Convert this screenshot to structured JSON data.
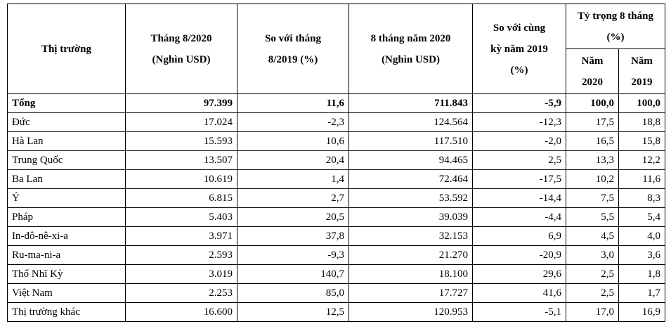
{
  "header": {
    "market": "Thị trường",
    "aug2020": [
      "Tháng 8/2020",
      "(Nghìn USD)"
    ],
    "vs_aug2019": [
      "So với tháng",
      "8/2019  (%)"
    ],
    "m8_2020": [
      "8 tháng năm 2020",
      "(Nghìn USD)"
    ],
    "vs_same_period": [
      "So với cùng",
      "kỳ năm 2019",
      "(%)"
    ],
    "share": [
      "Tỷ trọng 8 tháng",
      "(%)"
    ],
    "y2020": [
      "Năm",
      "2020"
    ],
    "y2019": [
      "Năm",
      "2019"
    ]
  },
  "rows": [
    {
      "market": "Tổng",
      "aug2020": "97.399",
      "vs_aug2019": "11,6",
      "m8_2020": "711.843",
      "vs_same_period": "-5,9",
      "share2020": "100,0",
      "share2019": "100,0"
    },
    {
      "market": "Đức",
      "aug2020": "17.024",
      "vs_aug2019": "-2,3",
      "m8_2020": "124.564",
      "vs_same_period": "-12,3",
      "share2020": "17,5",
      "share2019": "18,8"
    },
    {
      "market": "Hà Lan",
      "aug2020": "15.593",
      "vs_aug2019": "10,6",
      "m8_2020": "117.510",
      "vs_same_period": "-2,0",
      "share2020": "16,5",
      "share2019": "15,8"
    },
    {
      "market": "Trung Quốc",
      "aug2020": "13.507",
      "vs_aug2019": "20,4",
      "m8_2020": "94.465",
      "vs_same_period": "2,5",
      "share2020": "13,3",
      "share2019": "12,2"
    },
    {
      "market": "Ba Lan",
      "aug2020": "10.619",
      "vs_aug2019": "1,4",
      "m8_2020": "72.464",
      "vs_same_period": "-17,5",
      "share2020": "10,2",
      "share2019": "11,6"
    },
    {
      "market": "Ý",
      "aug2020": "6.815",
      "vs_aug2019": "2,7",
      "m8_2020": "53.592",
      "vs_same_period": "-14,4",
      "share2020": "7,5",
      "share2019": "8,3"
    },
    {
      "market": "Pháp",
      "aug2020": "5.403",
      "vs_aug2019": "20,5",
      "m8_2020": "39.039",
      "vs_same_period": "-4,4",
      "share2020": "5,5",
      "share2019": "5,4"
    },
    {
      "market": "In-đô-nê-xi-a",
      "aug2020": "3.971",
      "vs_aug2019": "37,8",
      "m8_2020": "32.153",
      "vs_same_period": "6,9",
      "share2020": "4,5",
      "share2019": "4,0"
    },
    {
      "market": "Ru-ma-ni-a",
      "aug2020": "2.593",
      "vs_aug2019": "-9,3",
      "m8_2020": "21.270",
      "vs_same_period": "-20,9",
      "share2020": "3,0",
      "share2019": "3,6"
    },
    {
      "market": "Thổ Nhĩ Kỳ",
      "aug2020": "3.019",
      "vs_aug2019": "140,7",
      "m8_2020": "18.100",
      "vs_same_period": "29,6",
      "share2020": "2,5",
      "share2019": "1,8"
    },
    {
      "market": "Việt Nam",
      "aug2020": "2.253",
      "vs_aug2019": "85,0",
      "m8_2020": "17.727",
      "vs_same_period": "41,6",
      "share2020": "2,5",
      "share2019": "1,7"
    },
    {
      "market": "Thị trường khác",
      "aug2020": "16.600",
      "vs_aug2019": "12,5",
      "m8_2020": "120.953",
      "vs_same_period": "-5,1",
      "share2020": "17,0",
      "share2019": "16,9"
    }
  ]
}
